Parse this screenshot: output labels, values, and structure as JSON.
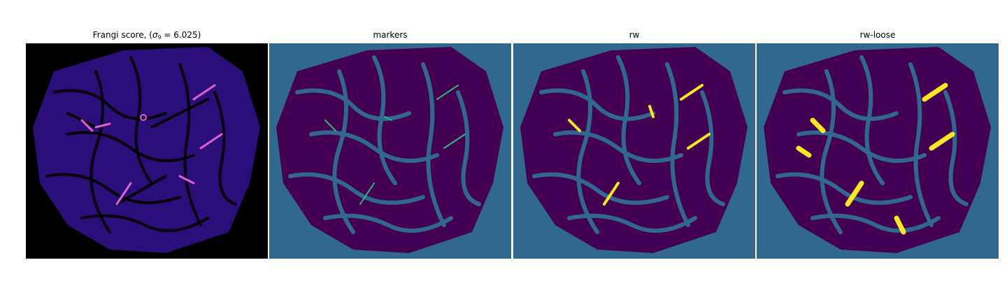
{
  "figure": {
    "panels": [
      {
        "id": "frangi",
        "title_prefix": "Frangi score, (",
        "title_symbol": "σ",
        "title_subscript": "9",
        "title_suffix": " = 6.025)"
      },
      {
        "id": "markers",
        "title": "markers"
      },
      {
        "id": "rw",
        "title": "rw"
      },
      {
        "id": "rw-loose",
        "title": "rw-loose"
      }
    ]
  },
  "colors": {
    "frangi_background": "#000000",
    "frangi_low": "#2a0f7a",
    "frangi_mid": "#4a1fb0",
    "frangi_high": "#e05fd0",
    "segmentation_background": "#31688e",
    "tissue": "#440154",
    "marker": "#35b779",
    "highlight": "#fde725"
  }
}
